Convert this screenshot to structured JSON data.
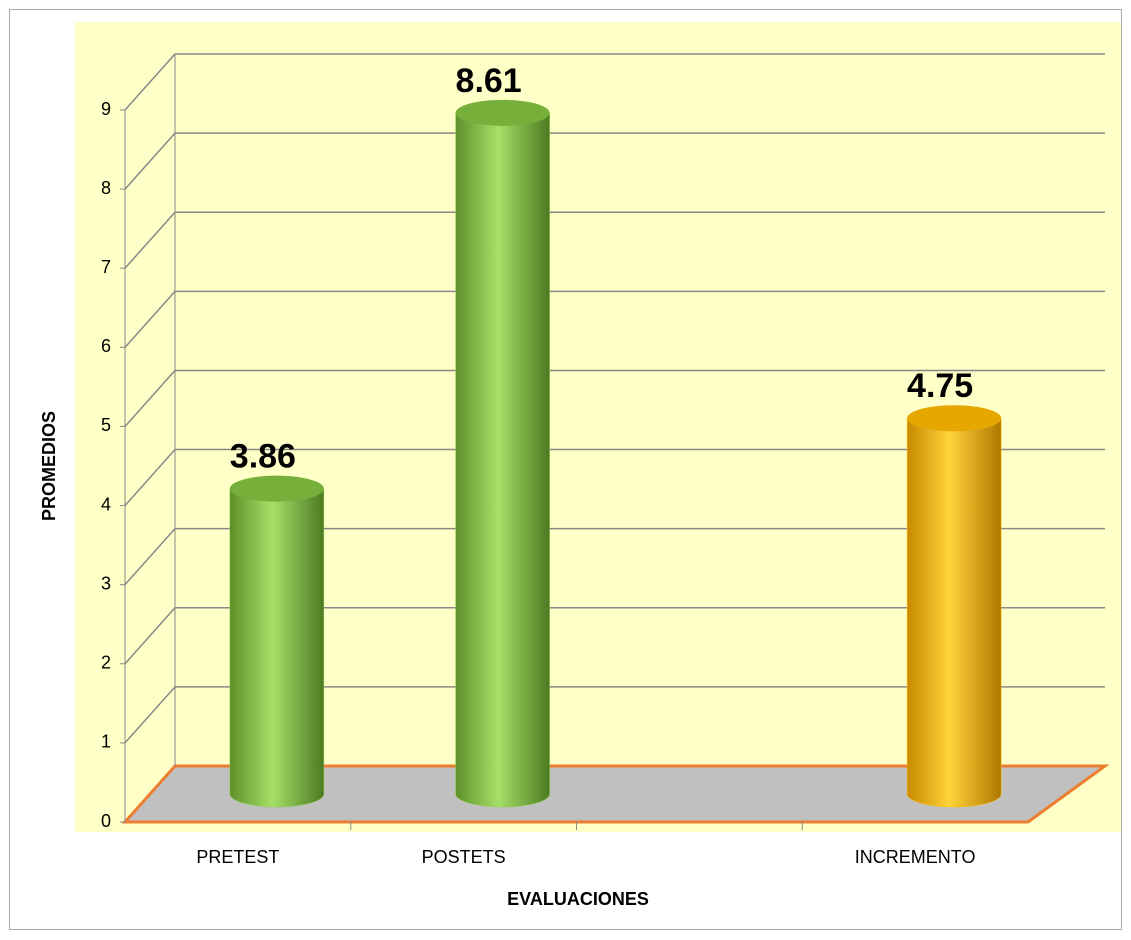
{
  "chart_data": {
    "type": "bar",
    "shape": "cylinder-3d",
    "categories": [
      "PRETEST",
      "POSTETS",
      null,
      "INCREMENTO"
    ],
    "values": [
      3.86,
      8.61,
      null,
      4.75
    ],
    "colors": [
      "#8fd14f",
      "#8fd14f",
      null,
      "#ffc000"
    ],
    "x_label": "EVALUACIONES",
    "y_label": "PROMEDIOS",
    "ylim": [
      0,
      9
    ],
    "yticks": [
      0,
      1,
      2,
      3,
      4,
      5,
      6,
      7,
      8,
      9
    ],
    "grid": true
  }
}
